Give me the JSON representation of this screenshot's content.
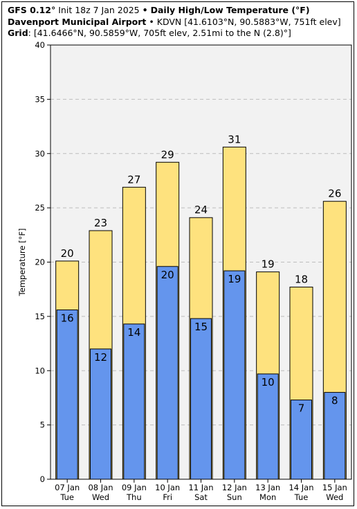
{
  "header": {
    "model": "GFS 0.12",
    "degree_sign": "°",
    "init": "Init 18z 7 Jan 2025",
    "bullet": "•",
    "product": "Daily High/Low Temperature (°F)",
    "station_name": "Davenport Municipal Airport",
    "station_detail": "KDVN [41.6103°N, 90.5883°W, 751ft elev]",
    "grid_label": "Grid",
    "grid_detail": ": [41.6466°N, 90.5859°W, 705ft elev, 2.51mi to the N (2.8)°]"
  },
  "chart_data": {
    "type": "bar",
    "categories": [
      "07 Jan",
      "08 Jan",
      "09 Jan",
      "10 Jan",
      "11 Jan",
      "12 Jan",
      "13 Jan",
      "14 Jan",
      "15 Jan"
    ],
    "weekdays": [
      "Tue",
      "Wed",
      "Thu",
      "Fri",
      "Sat",
      "Sun",
      "Mon",
      "Tue",
      "Wed"
    ],
    "series": [
      {
        "name": "High",
        "values": [
          20.1,
          22.9,
          26.9,
          29.2,
          24.1,
          30.6,
          19.1,
          17.7,
          25.6
        ],
        "labels": [
          "20",
          "23",
          "27",
          "29",
          "24",
          "31",
          "19",
          "18",
          "26"
        ],
        "color": "#fee27e"
      },
      {
        "name": "Low",
        "values": [
          15.6,
          12.0,
          14.3,
          19.6,
          14.8,
          19.2,
          9.7,
          7.3,
          8.0
        ],
        "labels": [
          "16",
          "12",
          "14",
          "20",
          "15",
          "19",
          "10",
          "7",
          "8"
        ],
        "color": "#6495ed"
      }
    ],
    "ylabel": "Temperature [°F]",
    "ylim": [
      0,
      40
    ],
    "yticks": [
      0,
      5,
      10,
      15,
      20,
      25,
      30,
      35,
      40
    ],
    "grid": true,
    "plot_background": "#f2f2f2",
    "gridline_color": "#bdbdbd"
  }
}
